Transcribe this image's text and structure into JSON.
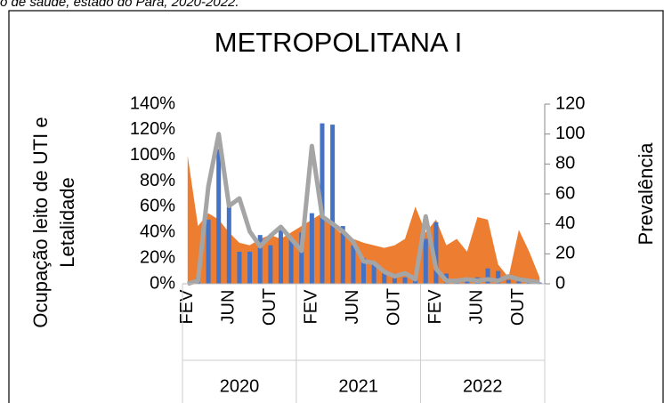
{
  "caption": "o de saúde, estado do Pará, 2020-2022.",
  "chart_data": {
    "type": "combo",
    "title": "METROPOLITANA I",
    "ylabel": [
      "Ocupação leito de UTI e",
      "Letalidade"
    ],
    "y2label": "Prevalência",
    "categories": [
      "FEV",
      null,
      null,
      null,
      "JUN",
      null,
      null,
      null,
      "OUT",
      null,
      null,
      null,
      "FEV",
      null,
      null,
      null,
      "JUN",
      null,
      null,
      null,
      "OUT",
      null,
      null,
      null,
      "FEV",
      null,
      null,
      null,
      "JUN",
      null,
      null,
      null,
      "OUT",
      null,
      null
    ],
    "groups": [
      {
        "label": "2020",
        "count": 11
      },
      {
        "label": "2021",
        "count": 12
      },
      {
        "label": "2022",
        "count": 12
      }
    ],
    "series": [
      {
        "kind": "area",
        "color": "#ED7D31",
        "values": [
          100,
          45,
          55,
          50,
          40,
          32,
          30,
          35,
          38,
          35,
          40,
          45,
          50,
          55,
          45,
          38,
          35,
          32,
          30,
          28,
          30,
          35,
          60,
          40,
          50,
          30,
          35,
          25,
          52,
          50,
          15,
          5,
          42,
          25,
          5
        ]
      },
      {
        "kind": "bar",
        "color": "#4472C4",
        "values": [
          0,
          5,
          50,
          105,
          60,
          25,
          25,
          38,
          30,
          45,
          35,
          40,
          55,
          125,
          124,
          45,
          30,
          20,
          15,
          10,
          8,
          5,
          3,
          35,
          48,
          8,
          3,
          3,
          5,
          12,
          10,
          3,
          2,
          2,
          1
        ]
      },
      {
        "kind": "line",
        "axis": "y2",
        "color": "#A5A5A5",
        "values": [
          0,
          2,
          65,
          100,
          52,
          57,
          35,
          25,
          32,
          38,
          30,
          22,
          92,
          45,
          40,
          35,
          28,
          15,
          14,
          8,
          5,
          7,
          3,
          45,
          10,
          2,
          2,
          3,
          2,
          3,
          2,
          5,
          3,
          2,
          1
        ]
      }
    ],
    "ylim": [
      0,
      140
    ],
    "yticks": [
      {
        "value": 0,
        "label": "0%"
      },
      {
        "value": 20,
        "label": "20%"
      },
      {
        "value": 40,
        "label": "40%"
      },
      {
        "value": 60,
        "label": "60%"
      },
      {
        "value": 80,
        "label": "80%"
      },
      {
        "value": 100,
        "label": "100%"
      },
      {
        "value": 120,
        "label": "120%"
      },
      {
        "value": 140,
        "label": "140%"
      }
    ],
    "y2lim": [
      0,
      120
    ],
    "y2ticks": [
      0,
      20,
      40,
      60,
      80,
      100,
      120
    ]
  }
}
